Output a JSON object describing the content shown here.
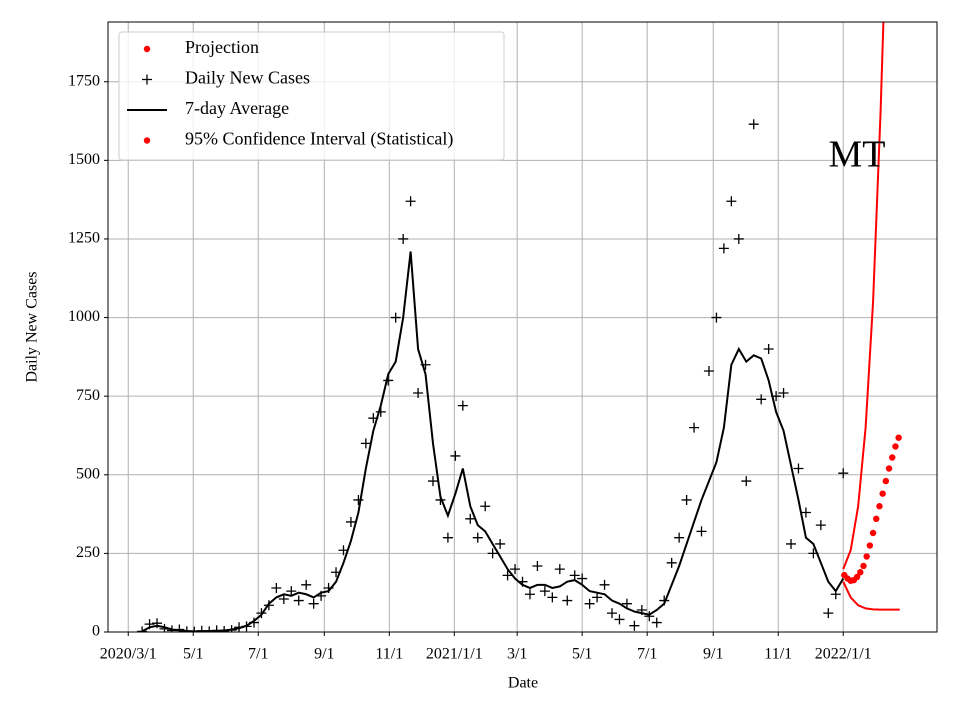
{
  "chart_data": {
    "type": "line",
    "annotation": "MT",
    "xlabel": "Date",
    "ylabel": "Daily New Cases",
    "xlim": [
      "2020-02-11",
      "2022-03-30"
    ],
    "ylim": [
      0,
      1940
    ],
    "xticks": [
      {
        "value": "2020-03-01",
        "label": "2020/3/1"
      },
      {
        "value": "2020-05-01",
        "label": "5/1"
      },
      {
        "value": "2020-07-01",
        "label": "7/1"
      },
      {
        "value": "2020-09-01",
        "label": "9/1"
      },
      {
        "value": "2020-11-01",
        "label": "11/1"
      },
      {
        "value": "2021-01-01",
        "label": "2021/1/1"
      },
      {
        "value": "2021-03-01",
        "label": "3/1"
      },
      {
        "value": "2021-05-01",
        "label": "5/1"
      },
      {
        "value": "2021-07-01",
        "label": "7/1"
      },
      {
        "value": "2021-09-01",
        "label": "9/1"
      },
      {
        "value": "2021-11-01",
        "label": "11/1"
      },
      {
        "value": "2022-01-01",
        "label": "2022/1/1"
      }
    ],
    "yticks": [
      0,
      250,
      500,
      750,
      1000,
      1250,
      1500,
      1750
    ],
    "grid": true,
    "legend": "upper left",
    "series": [
      {
        "name": "Projection",
        "color": "#ff0000",
        "marker": "dot",
        "x": [
          "2022-01-02",
          "2022-01-05",
          "2022-01-08",
          "2022-01-11",
          "2022-01-14",
          "2022-01-17",
          "2022-01-20",
          "2022-01-23",
          "2022-01-26",
          "2022-01-29",
          "2022-02-01",
          "2022-02-04",
          "2022-02-07",
          "2022-02-10",
          "2022-02-13",
          "2022-02-16",
          "2022-02-19",
          "2022-02-22"
        ],
        "values": [
          181,
          170,
          163,
          165,
          175,
          190,
          210,
          240,
          275,
          315,
          360,
          400,
          440,
          480,
          520,
          555,
          590,
          618
        ]
      },
      {
        "name": "Daily New Cases",
        "color": "#000000",
        "marker": "plus",
        "x": [
          "2020-03-14",
          "2020-03-21",
          "2020-03-28",
          "2020-04-04",
          "2020-04-11",
          "2020-04-18",
          "2020-04-25",
          "2020-05-02",
          "2020-05-09",
          "2020-05-16",
          "2020-05-23",
          "2020-05-30",
          "2020-06-06",
          "2020-06-13",
          "2020-06-20",
          "2020-06-27",
          "2020-07-04",
          "2020-07-11",
          "2020-07-18",
          "2020-07-25",
          "2020-08-01",
          "2020-08-08",
          "2020-08-15",
          "2020-08-22",
          "2020-08-29",
          "2020-09-05",
          "2020-09-12",
          "2020-09-19",
          "2020-09-26",
          "2020-10-03",
          "2020-10-10",
          "2020-10-17",
          "2020-10-24",
          "2020-10-31",
          "2020-11-07",
          "2020-11-14",
          "2020-11-21",
          "2020-11-28",
          "2020-12-05",
          "2020-12-12",
          "2020-12-19",
          "2020-12-26",
          "2021-01-02",
          "2021-01-09",
          "2021-01-16",
          "2021-01-23",
          "2021-01-30",
          "2021-02-06",
          "2021-02-13",
          "2021-02-20",
          "2021-02-27",
          "2021-03-06",
          "2021-03-13",
          "2021-03-20",
          "2021-03-27",
          "2021-04-03",
          "2021-04-10",
          "2021-04-17",
          "2021-04-24",
          "2021-05-01",
          "2021-05-08",
          "2021-05-15",
          "2021-05-22",
          "2021-05-29",
          "2021-06-05",
          "2021-06-12",
          "2021-06-19",
          "2021-06-26",
          "2021-07-03",
          "2021-07-10",
          "2021-07-17",
          "2021-07-24",
          "2021-07-31",
          "2021-08-07",
          "2021-08-14",
          "2021-08-21",
          "2021-08-28",
          "2021-09-04",
          "2021-09-11",
          "2021-09-18",
          "2021-09-25",
          "2021-10-02",
          "2021-10-09",
          "2021-10-16",
          "2021-10-23",
          "2021-10-30",
          "2021-11-06",
          "2021-11-13",
          "2021-11-20",
          "2021-11-27",
          "2021-12-04",
          "2021-12-11",
          "2021-12-18",
          "2021-12-25",
          "2022-01-01"
        ],
        "values": [
          2,
          25,
          28,
          10,
          5,
          8,
          2,
          1,
          4,
          2,
          5,
          3,
          6,
          15,
          18,
          30,
          60,
          85,
          140,
          105,
          130,
          100,
          150,
          90,
          115,
          140,
          190,
          260,
          350,
          420,
          600,
          680,
          700,
          800,
          1000,
          1250,
          1370,
          760,
          850,
          480,
          420,
          300,
          560,
          720,
          360,
          300,
          400,
          250,
          280,
          180,
          200,
          160,
          120,
          210,
          130,
          110,
          200,
          100,
          180,
          170,
          90,
          110,
          150,
          60,
          40,
          90,
          20,
          70,
          50,
          30,
          100,
          220,
          300,
          420,
          650,
          320,
          830,
          1000,
          1220,
          1370,
          1250,
          480,
          1615,
          740,
          900,
          750,
          760,
          280,
          520,
          380,
          250,
          340,
          60,
          120,
          505
        ]
      },
      {
        "name": "7-day Average",
        "color": "#000000",
        "marker": "line",
        "x": [
          "2020-03-14",
          "2020-03-21",
          "2020-03-28",
          "2020-04-04",
          "2020-04-11",
          "2020-04-18",
          "2020-04-25",
          "2020-05-02",
          "2020-05-09",
          "2020-05-16",
          "2020-05-23",
          "2020-05-30",
          "2020-06-06",
          "2020-06-13",
          "2020-06-20",
          "2020-06-27",
          "2020-07-04",
          "2020-07-11",
          "2020-07-18",
          "2020-07-25",
          "2020-08-01",
          "2020-08-08",
          "2020-08-15",
          "2020-08-22",
          "2020-08-29",
          "2020-09-05",
          "2020-09-12",
          "2020-09-19",
          "2020-09-26",
          "2020-10-03",
          "2020-10-10",
          "2020-10-17",
          "2020-10-24",
          "2020-10-31",
          "2020-11-07",
          "2020-11-14",
          "2020-11-21",
          "2020-11-28",
          "2020-12-05",
          "2020-12-12",
          "2020-12-19",
          "2020-12-26",
          "2021-01-02",
          "2021-01-09",
          "2021-01-16",
          "2021-01-23",
          "2021-01-30",
          "2021-02-06",
          "2021-02-13",
          "2021-02-20",
          "2021-02-27",
          "2021-03-06",
          "2021-03-13",
          "2021-03-20",
          "2021-03-27",
          "2021-04-03",
          "2021-04-10",
          "2021-04-17",
          "2021-04-24",
          "2021-05-01",
          "2021-05-08",
          "2021-05-15",
          "2021-05-22",
          "2021-05-29",
          "2021-06-05",
          "2021-06-12",
          "2021-06-19",
          "2021-06-26",
          "2021-07-03",
          "2021-07-10",
          "2021-07-17",
          "2021-07-24",
          "2021-07-31",
          "2021-08-07",
          "2021-08-14",
          "2021-08-21",
          "2021-08-28",
          "2021-09-04",
          "2021-09-11",
          "2021-09-18",
          "2021-09-25",
          "2021-10-02",
          "2021-10-09",
          "2021-10-16",
          "2021-10-23",
          "2021-10-30",
          "2021-11-06",
          "2021-11-13",
          "2021-11-20",
          "2021-11-27",
          "2021-12-04",
          "2021-12-11",
          "2021-12-18",
          "2021-12-25",
          "2022-01-01"
        ],
        "values": [
          2,
          15,
          20,
          15,
          8,
          5,
          3,
          2,
          2,
          3,
          3,
          5,
          8,
          12,
          20,
          35,
          55,
          90,
          110,
          120,
          115,
          125,
          120,
          110,
          125,
          130,
          160,
          220,
          290,
          380,
          520,
          640,
          720,
          820,
          860,
          1000,
          1210,
          900,
          820,
          600,
          430,
          370,
          440,
          520,
          400,
          340,
          320,
          280,
          240,
          200,
          170,
          150,
          140,
          150,
          150,
          140,
          145,
          160,
          165,
          150,
          130,
          125,
          120,
          100,
          90,
          75,
          65,
          60,
          55,
          70,
          90,
          150,
          210,
          280,
          350,
          420,
          480,
          540,
          650,
          850,
          900,
          860,
          880,
          870,
          800,
          700,
          640,
          530,
          420,
          300,
          280,
          220,
          160,
          130,
          170
        ]
      },
      {
        "name": "95% Confidence Interval (Statistical)",
        "color": "#ff0000",
        "marker": "dot",
        "x": [
          "2022-01-01",
          "2022-01-08",
          "2022-01-15",
          "2022-01-22",
          "2022-01-29",
          "2022-02-05",
          "2022-02-12",
          "2022-02-23"
        ],
        "upper": [
          200,
          260,
          400,
          650,
          1050,
          1650,
          2400,
          null
        ],
        "lower": [
          160,
          110,
          85,
          75,
          72,
          71,
          71,
          71
        ]
      }
    ]
  }
}
